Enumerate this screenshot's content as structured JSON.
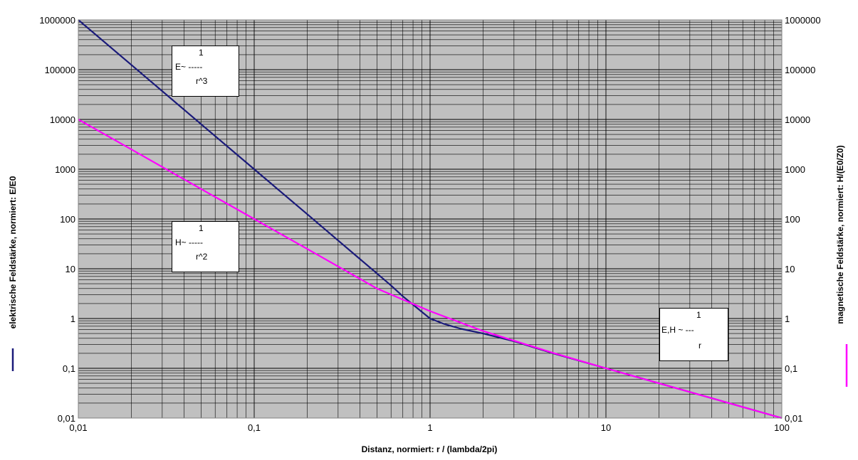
{
  "chart_data": {
    "type": "line",
    "title": "",
    "xlabel": "Distanz, normiert:    r / (lambda/2pi)",
    "ylabel_left": "elektrische Feldstärke, normiert:  E/E0",
    "ylabel_right": "magnetische Feldstärke, normiert: H/(E0/Z0)",
    "x_scale": "log",
    "y_scale": "log",
    "xlim": [
      0.01,
      100
    ],
    "ylim": [
      0.01,
      1000000
    ],
    "grid": true,
    "x_ticks": [
      "0,01",
      "0,1",
      "1",
      "10",
      "100"
    ],
    "x_tick_values": [
      0.01,
      0.1,
      1,
      10,
      100
    ],
    "y_ticks": [
      "0,01",
      "0,1",
      "1",
      "10",
      "100",
      "1000",
      "10000",
      "100000",
      "1000000"
    ],
    "y_tick_values": [
      0.01,
      0.1,
      1,
      10,
      100,
      1000,
      10000,
      100000,
      1000000
    ],
    "series": [
      {
        "axis": "left",
        "color": "#1a1a7a",
        "x": [
          0.01,
          0.02,
          0.05,
          0.1,
          0.2,
          0.3,
          0.4,
          0.5,
          0.6,
          0.7,
          0.8,
          0.9,
          1,
          1.2,
          1.5,
          2,
          3,
          5,
          10,
          20,
          50,
          100
        ],
        "y": [
          1000000,
          125000,
          8000,
          1000,
          125,
          37,
          15.6,
          8,
          4.6,
          2.8,
          1.9,
          1.35,
          1.0,
          0.78,
          0.62,
          0.5,
          0.35,
          0.2,
          0.1,
          0.05,
          0.02,
          0.01
        ]
      },
      {
        "axis": "right",
        "color": "#ff00ff",
        "x": [
          0.01,
          0.02,
          0.05,
          0.1,
          0.2,
          0.5,
          0.7,
          1,
          2,
          5,
          10,
          20,
          50,
          100
        ],
        "y": [
          10000,
          2500,
          400,
          100,
          25,
          4,
          2.4,
          1.41,
          0.56,
          0.204,
          0.1,
          0.05,
          0.02,
          0.01
        ]
      }
    ]
  },
  "annotations": {
    "e_r3": {
      "num": "1",
      "mid": "E~ -----",
      "den": "r^3"
    },
    "h_r2": {
      "num": "1",
      "mid": "H~ -----",
      "den": "r^2"
    },
    "eh_r": {
      "num": "1",
      "mid": "E,H ~ ---",
      "den": "r"
    }
  },
  "colors": {
    "plot_background": "#c0c0c0",
    "electric": "#1a1a7a",
    "magnetic": "#ff00ff"
  }
}
